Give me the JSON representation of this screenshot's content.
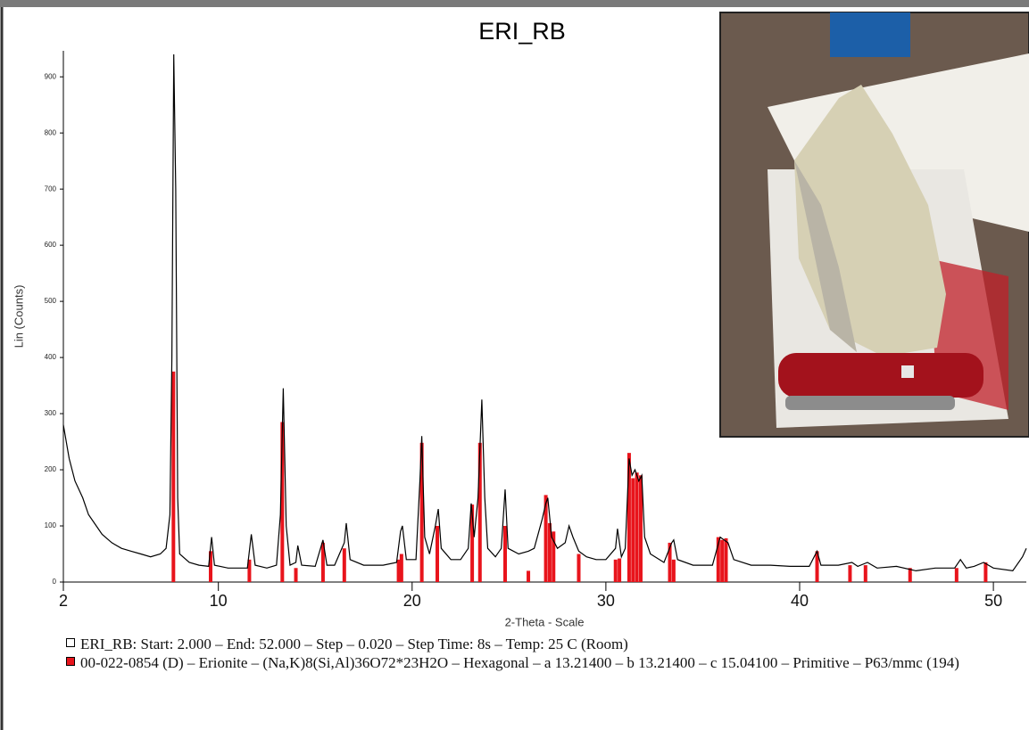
{
  "chart_data": {
    "type": "xrd",
    "title": "ERI_RB",
    "y_label": "Lin (Counts)",
    "x_label": "2-Theta - Scale",
    "xlim": [
      2,
      51.7
    ],
    "xticks": [
      2,
      10,
      20,
      30,
      40,
      50
    ],
    "ylim": [
      0,
      940
    ],
    "yticks": [
      0,
      100,
      200,
      300,
      400,
      500,
      600,
      700,
      800,
      900
    ],
    "series": [
      {
        "name": "ERI_RB: Start: 2.000 – End: 52.000 – Step – 0.020 – Step Time: 8s – Temp: 25 C (Room)",
        "color": "#000000",
        "kind": "line",
        "x": [
          2.0,
          2.3,
          2.6,
          3.0,
          3.3,
          3.7,
          4.0,
          4.5,
          5.0,
          5.5,
          6.0,
          6.5,
          7.0,
          7.3,
          7.5,
          7.6,
          7.7,
          7.8,
          7.9,
          8.0,
          8.5,
          9.0,
          9.5,
          9.65,
          9.8,
          10.5,
          11.0,
          11.5,
          11.7,
          11.9,
          12.5,
          13.0,
          13.2,
          13.35,
          13.5,
          13.7,
          14.0,
          14.1,
          14.3,
          15.0,
          15.4,
          15.6,
          16.0,
          16.5,
          16.6,
          16.8,
          17.5,
          18.5,
          19.2,
          19.4,
          19.5,
          19.7,
          20.2,
          20.4,
          20.5,
          20.65,
          20.9,
          21.2,
          21.35,
          21.5,
          22.0,
          22.5,
          22.9,
          23.05,
          23.2,
          23.4,
          23.6,
          23.75,
          23.9,
          24.3,
          24.6,
          24.8,
          24.95,
          25.5,
          26.0,
          26.3,
          26.7,
          26.9,
          27.0,
          27.2,
          27.5,
          27.9,
          28.1,
          28.3,
          28.6,
          29.0,
          29.5,
          30.0,
          30.5,
          30.6,
          30.8,
          31.0,
          31.2,
          31.35,
          31.5,
          31.7,
          31.85,
          32.0,
          32.3,
          33.0,
          33.4,
          33.5,
          33.7,
          34.5,
          35.0,
          35.5,
          35.9,
          36.1,
          36.3,
          36.6,
          37.5,
          38.5,
          39.5,
          40.5,
          40.9,
          41.1,
          42.0,
          42.7,
          43.0,
          43.5,
          44.0,
          45.0,
          46.0,
          47.0,
          48.0,
          48.3,
          48.6,
          49.0,
          49.5,
          50.0,
          51.0,
          51.5,
          51.7
        ],
        "values": [
          280,
          220,
          180,
          150,
          120,
          100,
          85,
          70,
          60,
          55,
          50,
          45,
          50,
          60,
          120,
          400,
          940,
          700,
          150,
          50,
          35,
          30,
          28,
          80,
          30,
          25,
          25,
          25,
          85,
          30,
          25,
          30,
          120,
          345,
          100,
          30,
          35,
          65,
          30,
          28,
          75,
          30,
          30,
          70,
          105,
          40,
          30,
          30,
          35,
          90,
          100,
          40,
          40,
          180,
          260,
          80,
          50,
          100,
          130,
          60,
          40,
          40,
          60,
          140,
          80,
          150,
          325,
          150,
          60,
          45,
          60,
          165,
          60,
          50,
          55,
          60,
          110,
          140,
          150,
          80,
          60,
          70,
          100,
          80,
          55,
          45,
          40,
          40,
          60,
          95,
          45,
          60,
          220,
          190,
          200,
          180,
          190,
          80,
          50,
          35,
          70,
          75,
          40,
          30,
          30,
          30,
          80,
          75,
          70,
          40,
          30,
          30,
          28,
          28,
          55,
          30,
          30,
          35,
          28,
          35,
          25,
          28,
          20,
          25,
          25,
          40,
          25,
          28,
          35,
          25,
          20,
          45,
          60
        ]
      },
      {
        "name": "00-022-0854 (D) – Erionite – (Na,K)8(Si,Al)36O72*23H2O – Hexagonal – a 13.21400 – b 13.21400 – c 15.04100 – Primitive – P63/mmc (194)",
        "color": "#e8141c",
        "kind": "sticks",
        "x": [
          7.68,
          9.6,
          11.6,
          13.3,
          14.0,
          15.4,
          16.5,
          19.3,
          19.45,
          20.5,
          21.3,
          23.1,
          23.5,
          24.8,
          26.0,
          26.9,
          27.1,
          27.3,
          28.6,
          30.5,
          30.7,
          31.2,
          31.4,
          31.6,
          31.8,
          33.3,
          33.5,
          35.8,
          36.0,
          36.2,
          40.9,
          42.6,
          43.4,
          45.7,
          48.1,
          49.6
        ],
        "values": [
          375,
          55,
          40,
          285,
          25,
          70,
          60,
          40,
          50,
          248,
          100,
          138,
          248,
          100,
          20,
          155,
          105,
          90,
          50,
          40,
          42,
          230,
          185,
          195,
          190,
          70,
          40,
          80,
          75,
          78,
          55,
          30,
          30,
          25,
          25,
          35
        ]
      }
    ]
  }
}
